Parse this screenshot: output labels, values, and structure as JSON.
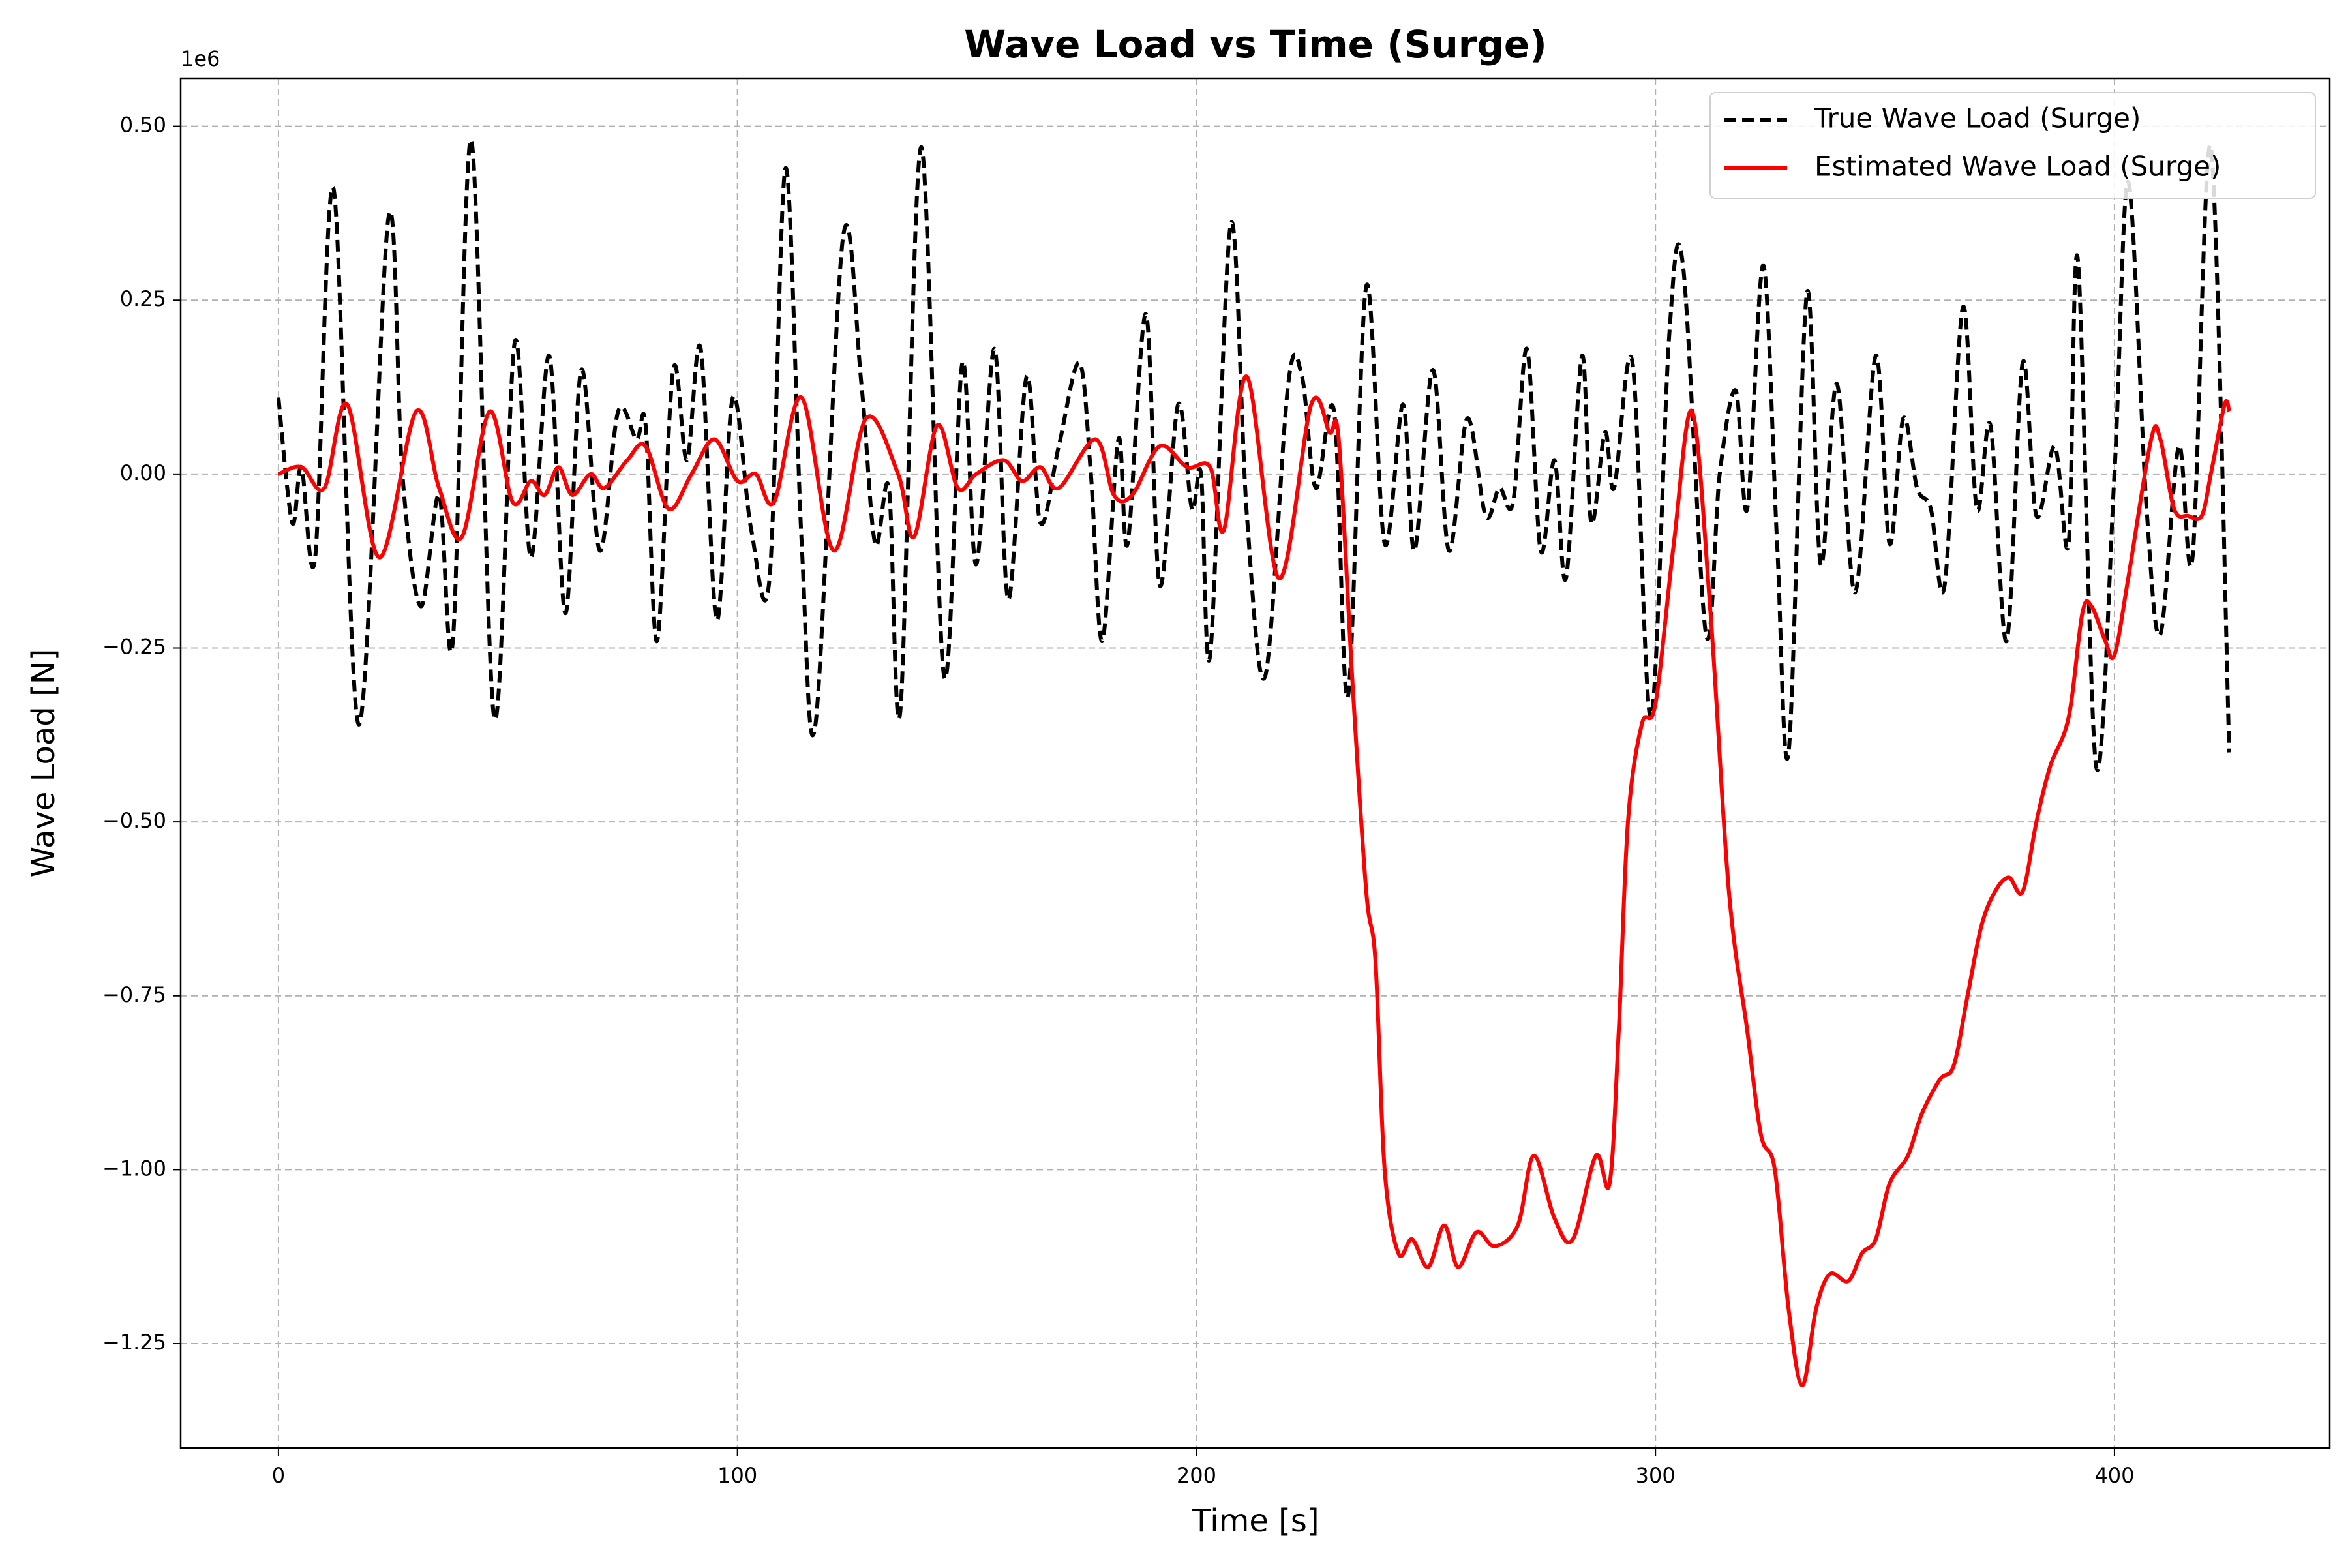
{
  "chart_data": {
    "type": "line",
    "title": "Wave Load vs Time (Surge)",
    "xlabel": "Time [s]",
    "ylabel": "Wave Load [N]",
    "y_offset_label": "1e6",
    "xlim": [
      -21.3,
      446.9
    ],
    "ylim": [
      -1.4,
      0.569
    ],
    "xticks": [
      0,
      100,
      200,
      300,
      400
    ],
    "yticks": [
      {
        "value": 0.5,
        "label": "0.50"
      },
      {
        "value": 0.25,
        "label": "0.25"
      },
      {
        "value": 0,
        "label": "0.00"
      },
      {
        "value": -0.25,
        "label": "−0.25"
      },
      {
        "value": -0.5,
        "label": "−0.50"
      },
      {
        "value": -0.75,
        "label": "−0.75"
      },
      {
        "value": -1,
        "label": "−1.00"
      },
      {
        "value": -1.25,
        "label": "−1.25"
      }
    ],
    "grid": true,
    "legend": "upper right",
    "series": [
      {
        "name": "True Wave Load (Surge)",
        "color": "#000000",
        "dashed": true,
        "x": [
          0,
          3,
          5,
          8,
          12,
          17.5,
          24,
          27,
          31,
          35,
          38,
          42,
          47,
          51.5,
          55,
          59,
          62.5,
          66,
          70,
          74,
          78,
          80,
          82.5,
          86,
          89,
          92,
          95.5,
          99,
          103,
          107,
          110.5,
          114,
          117,
          123,
          127,
          130,
          133,
          135.5,
          140,
          145,
          149,
          152,
          156,
          159,
          163,
          166,
          170,
          174.5,
          177,
          179.5,
          183,
          185,
          189,
          192,
          196,
          199,
          201,
          203,
          207.5,
          211,
          215,
          220,
          223,
          226,
          230,
          233,
          237,
          241,
          245,
          247.5,
          251.5,
          255,
          259,
          263,
          266,
          269,
          272,
          275,
          278,
          280.5,
          284,
          286,
          289,
          291,
          295,
          299,
          303,
          306,
          311,
          314,
          317.5,
          320,
          323.5,
          326.5,
          329,
          333,
          336,
          339.5,
          343.5,
          348,
          351,
          354,
          357,
          360,
          363,
          367,
          370,
          373,
          376.5,
          380,
          383,
          387,
          390,
          392,
          396,
          400,
          403,
          407,
          410,
          414,
          417,
          421,
          425
        ],
        "values": [
          0.11,
          -0.07,
          0.01,
          -0.12,
          0.41,
          -0.36,
          0.37,
          0.0,
          -0.19,
          -0.03,
          -0.24,
          0.48,
          -0.35,
          0.19,
          -0.12,
          0.17,
          -0.2,
          0.15,
          -0.11,
          0.09,
          0.05,
          0.07,
          -0.24,
          0.15,
          0.02,
          0.18,
          -0.21,
          0.11,
          -0.08,
          -0.15,
          0.44,
          -0.1,
          -0.36,
          0.34,
          0.13,
          -0.1,
          -0.02,
          -0.34,
          0.47,
          -0.29,
          0.16,
          -0.13,
          0.18,
          -0.18,
          0.14,
          -0.07,
          0.04,
          0.16,
          0.0,
          -0.24,
          0.05,
          -0.1,
          0.23,
          -0.16,
          0.1,
          -0.05,
          0.0,
          -0.26,
          0.36,
          -0.06,
          -0.29,
          0.13,
          0.14,
          -0.02,
          0.09,
          -0.32,
          0.27,
          -0.1,
          0.1,
          -0.11,
          0.15,
          -0.11,
          0.08,
          -0.06,
          -0.02,
          -0.04,
          0.18,
          -0.11,
          0.02,
          -0.15,
          0.17,
          -0.07,
          0.06,
          -0.02,
          0.16,
          -0.35,
          0.2,
          0.3,
          -0.23,
          0.0,
          0.12,
          -0.05,
          0.3,
          -0.1,
          -0.4,
          0.26,
          -0.13,
          0.13,
          -0.17,
          0.17,
          -0.1,
          0.08,
          -0.02,
          -0.05,
          -0.16,
          0.24,
          -0.05,
          0.07,
          -0.24,
          0.16,
          -0.06,
          0.04,
          -0.1,
          0.31,
          -0.42,
          0.0,
          0.42,
          -0.05,
          -0.23,
          0.04,
          -0.12,
          0.47,
          -0.4
        ]
      },
      {
        "name": "Estimated Wave Load (Surge)",
        "color": "#ff0000",
        "dashed": false,
        "x": [
          0,
          5,
          10,
          15,
          22,
          30,
          35,
          40,
          46,
          51,
          55,
          58,
          61,
          64,
          68,
          71,
          76,
          80,
          85,
          90,
          95,
          100,
          104,
          108,
          114,
          121,
          128,
          135,
          138.5,
          143.5,
          148,
          152,
          158,
          162,
          166,
          170,
          178,
          182,
          186,
          192,
          198,
          203,
          206,
          211,
          218,
          225,
          229,
          231,
          234,
          237,
          239,
          241,
          244,
          247,
          250.5,
          254,
          257,
          261,
          265,
          270,
          273.5,
          278,
          282,
          287,
          290,
          292,
          294,
          297,
          300,
          304,
          308,
          312,
          316,
          320,
          323,
          326,
          329,
          332,
          335,
          338,
          342,
          345,
          348,
          351,
          355,
          358,
          362,
          365,
          368,
          371,
          374,
          377,
          380,
          383,
          386,
          390,
          393,
          395,
          398,
          400,
          403,
          408,
          410,
          413,
          416,
          419,
          421,
          424,
          425
        ],
        "values": [
          0,
          0.01,
          -0.02,
          0.1,
          -0.12,
          0.09,
          -0.02,
          -0.09,
          0.09,
          -0.04,
          -0.01,
          -0.03,
          0.01,
          -0.03,
          0.0,
          -0.02,
          0.02,
          0.04,
          -0.05,
          0.0,
          0.05,
          -0.01,
          0.0,
          -0.04,
          0.11,
          -0.11,
          0.08,
          0.0,
          -0.09,
          0.07,
          -0.02,
          0.0,
          0.02,
          -0.01,
          0.01,
          -0.02,
          0.05,
          -0.03,
          -0.03,
          0.04,
          0.01,
          0.01,
          -0.08,
          0.14,
          -0.15,
          0.1,
          0.06,
          0.05,
          -0.3,
          -0.6,
          -0.7,
          -1.0,
          -1.12,
          -1.1,
          -1.14,
          -1.08,
          -1.14,
          -1.09,
          -1.11,
          -1.08,
          -0.98,
          -1.07,
          -1.1,
          -0.98,
          -1.02,
          -0.8,
          -0.5,
          -0.36,
          -0.33,
          -0.1,
          0.09,
          -0.2,
          -0.6,
          -0.8,
          -0.95,
          -1.0,
          -1.2,
          -1.31,
          -1.2,
          -1.15,
          -1.16,
          -1.12,
          -1.1,
          -1.02,
          -0.98,
          -0.92,
          -0.87,
          -0.85,
          -0.75,
          -0.65,
          -0.6,
          -0.58,
          -0.6,
          -0.5,
          -0.42,
          -0.35,
          -0.2,
          -0.19,
          -0.24,
          -0.26,
          -0.15,
          0.05,
          0.05,
          -0.05,
          -0.06,
          -0.06,
          0.0,
          0.1,
          0.09
        ]
      }
    ]
  }
}
